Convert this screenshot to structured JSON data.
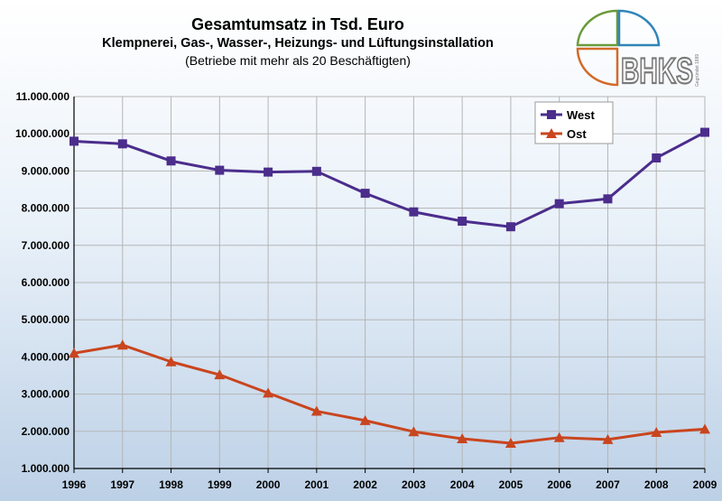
{
  "chart_data": {
    "type": "line",
    "title": "Gesamtumsatz in Tsd. Euro",
    "subtitle": "Klempnerei, Gas-, Wasser-, Heizungs- und Lüftungsinstallation",
    "subtitle2": "(Betriebe mit mehr als 20 Beschäftigten)",
    "x": [
      "1996",
      "1997",
      "1998",
      "1999",
      "2000",
      "2001",
      "2002",
      "2003",
      "2004",
      "2005",
      "2006",
      "2007",
      "2008",
      "2009"
    ],
    "ylim": [
      1000000,
      11000000
    ],
    "yticks": [
      1000000,
      2000000,
      3000000,
      4000000,
      5000000,
      6000000,
      7000000,
      8000000,
      9000000,
      10000000,
      11000000
    ],
    "ytick_labels": [
      "1.000.000",
      "2.000.000",
      "3.000.000",
      "4.000.000",
      "5.000.000",
      "6.000.000",
      "7.000.000",
      "8.000.000",
      "9.000.000",
      "10.000.000",
      "11.000.000"
    ],
    "grid": true,
    "legend_position": "top-right",
    "series": [
      {
        "name": "West",
        "color": "#4b2d8c",
        "marker": "square",
        "values": [
          9800000,
          9730000,
          9270000,
          9020000,
          8970000,
          8990000,
          8400000,
          7900000,
          7650000,
          7500000,
          8120000,
          8250000,
          9350000,
          10040000
        ]
      },
      {
        "name": "Ost",
        "color": "#c9451e",
        "marker": "triangle",
        "values": [
          4100000,
          4320000,
          3870000,
          3520000,
          3030000,
          2540000,
          2290000,
          1990000,
          1800000,
          1680000,
          1830000,
          1780000,
          1970000,
          2060000
        ]
      }
    ]
  },
  "logo": {
    "text": "BHKS",
    "small_text": "Gegründet 1889",
    "colors": {
      "green": "#6a9a3a",
      "blue": "#2f85b8",
      "orange": "#d36a2a",
      "gray": "#7a7a7a"
    }
  }
}
